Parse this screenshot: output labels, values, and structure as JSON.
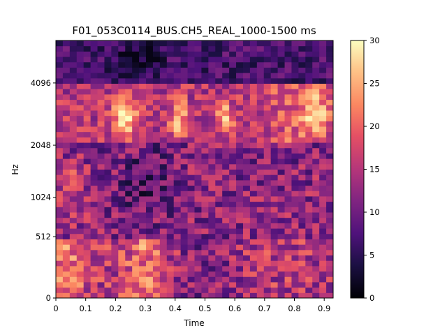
{
  "chart_data": {
    "type": "heatmap",
    "title": "F01_053C0114_BUS.CH5_REAL_1000-1500 ms",
    "xlabel": "Time",
    "ylabel": "Hz",
    "xlim": [
      0,
      0.93
    ],
    "x_ticks": [
      0,
      0.1,
      0.2,
      0.3,
      0.4,
      0.5,
      0.6,
      0.7,
      0.8,
      0.9
    ],
    "x_tick_labels": [
      "0",
      "0.1",
      "0.2",
      "0.3",
      "0.4",
      "0.5",
      "0.6",
      "0.7",
      "0.8",
      "0.9"
    ],
    "y_scale": "log-frequency (mel-like)",
    "y_ticks": [
      0,
      512,
      1024,
      2048,
      4096
    ],
    "y_tick_labels": [
      "0",
      "512",
      "1024",
      "2048",
      "4096"
    ],
    "colormap": "magma",
    "colorbar": {
      "range": [
        0,
        30
      ],
      "ticks": [
        0,
        5,
        10,
        15,
        20,
        25,
        30
      ],
      "tick_labels": [
        "0",
        "5",
        "10",
        "15",
        "20",
        "25",
        "30"
      ]
    },
    "grid": false,
    "n_time_bins": 40,
    "n_freq_bins": 48,
    "approximate_intensity_description": {
      "band_above_4096_Hz": "dark, values ~2-10",
      "band_2048_4096_Hz": "bright blobs (~28-30) near t=0.22, 0.41, 0.57, 0.86-0.9",
      "band_512_2048_Hz": "medium values ~8-16, darker near t=0.25-0.35",
      "band_0_512_Hz": "values ~12-22, bright near t=0.05, 0.3"
    }
  }
}
